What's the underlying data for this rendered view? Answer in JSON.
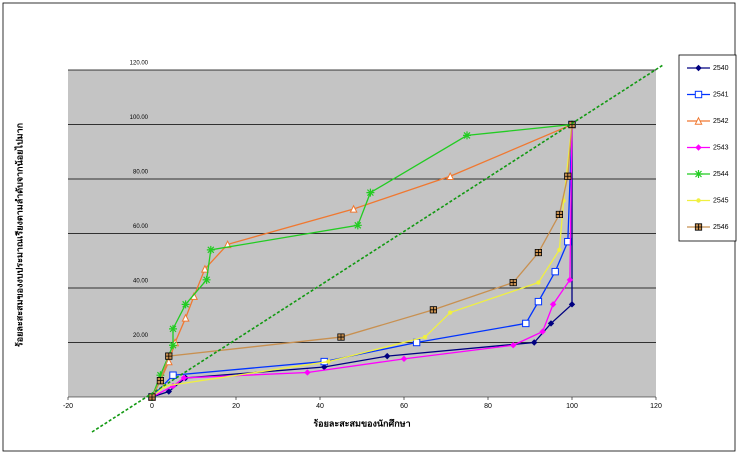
{
  "chart_data": {
    "type": "line",
    "x_label": "ร้อยละสะสมของนักศึกษา",
    "y_label": "ร้อยละสะสมของงบประมาณเรียงตามลำดับจากน้อยไปมาก",
    "xlim": [
      -20,
      120
    ],
    "xticks": [
      -20,
      0,
      20,
      40,
      60,
      80,
      100,
      120
    ],
    "ylim": [
      0,
      120
    ],
    "yticks": [
      {
        "value": 20,
        "label": "20.00"
      },
      {
        "value": 40,
        "label": "40.00"
      },
      {
        "value": 60,
        "label": "60.00"
      },
      {
        "value": 80,
        "label": "80.00"
      },
      {
        "value": 100,
        "label": "100.00"
      },
      {
        "value": 120,
        "label": "120.00"
      }
    ],
    "grid": true,
    "legend": "right",
    "series": [
      {
        "name": "2540",
        "color": "#000080",
        "marker": "diamond",
        "x": [
          0,
          4,
          8,
          41,
          56,
          91,
          95,
          100,
          100
        ],
        "values": [
          0,
          2,
          7,
          11,
          15,
          20,
          27,
          34,
          100
        ]
      },
      {
        "name": "2541",
        "color": "#0033ff",
        "marker": "square",
        "x": [
          0,
          5,
          41,
          63,
          89,
          92,
          96,
          99,
          100
        ],
        "values": [
          0,
          8,
          13,
          20,
          27,
          35,
          46,
          57,
          100
        ]
      },
      {
        "name": "2542",
        "color": "#f07830",
        "marker": "triangle",
        "x": [
          0,
          2,
          4,
          5.5,
          8,
          10,
          12.6,
          18,
          48,
          71,
          100
        ],
        "values": [
          0,
          6,
          13,
          20,
          29,
          37,
          47,
          56,
          69,
          81,
          100
        ]
      },
      {
        "name": "2543",
        "color": "#ff00ff",
        "marker": "diamond",
        "x": [
          0,
          5,
          7.6,
          37,
          60,
          86,
          93,
          95.5,
          99.5,
          100
        ],
        "values": [
          0,
          4,
          7,
          9,
          14,
          19,
          24,
          34,
          43,
          100
        ]
      },
      {
        "name": "2544",
        "color": "#22cc22",
        "marker": "star",
        "x": [
          0,
          2,
          5,
          5,
          8,
          13,
          14,
          49,
          52,
          75,
          100
        ],
        "values": [
          0,
          8,
          19,
          25,
          34,
          43,
          54,
          63,
          75,
          96,
          100
        ]
      },
      {
        "name": "2545",
        "color": "#f0f040",
        "marker": "circle",
        "x": [
          0,
          3,
          42,
          65,
          71,
          92,
          97,
          98,
          100
        ],
        "values": [
          0,
          4,
          13,
          22,
          31,
          42,
          54,
          72,
          100
        ]
      },
      {
        "name": "2546",
        "color": "#c89050",
        "marker": "plus",
        "x": [
          0,
          2,
          4,
          45,
          67,
          86,
          92,
          97,
          99,
          100
        ],
        "values": [
          0,
          6,
          15,
          22,
          32,
          42,
          53,
          67,
          81,
          100
        ]
      }
    ]
  }
}
